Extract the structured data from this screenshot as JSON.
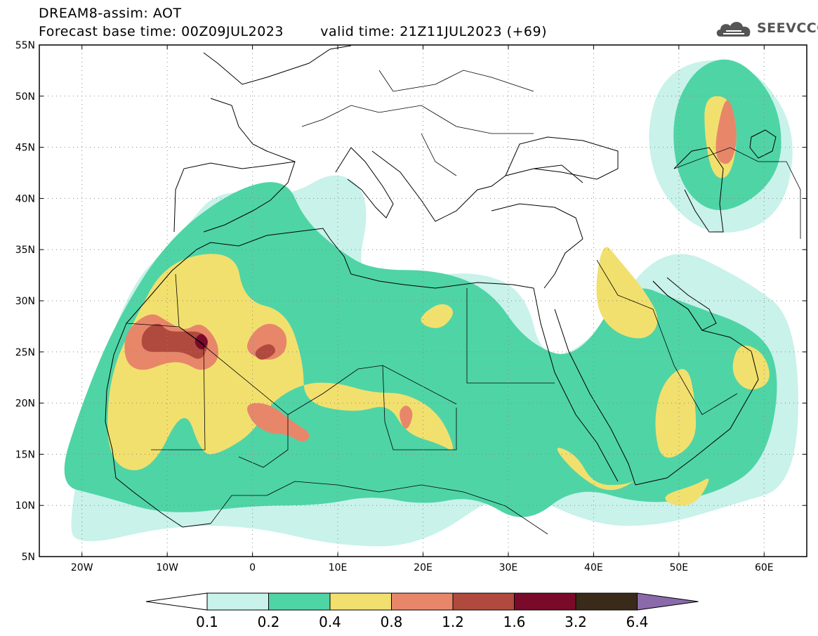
{
  "header": {
    "line1": "DREAM8-assim: AOT",
    "base_label": "Forecast base time: 00Z09JUL2023",
    "valid_label": "valid time: 21Z11JUL2023 (+69)"
  },
  "logo": {
    "text": "SEEVCCC",
    "icon": "cloud-icon"
  },
  "map": {
    "lon_range": [
      -25,
      65
    ],
    "lat_range": [
      5,
      55
    ],
    "lat_ticks": [
      {
        "value": 55,
        "label": "55N"
      },
      {
        "value": 50,
        "label": "50N"
      },
      {
        "value": 45,
        "label": "45N"
      },
      {
        "value": 40,
        "label": "40N"
      },
      {
        "value": 35,
        "label": "35N"
      },
      {
        "value": 30,
        "label": "30N"
      },
      {
        "value": 25,
        "label": "25N"
      },
      {
        "value": 20,
        "label": "20N"
      },
      {
        "value": 15,
        "label": "15N"
      },
      {
        "value": 10,
        "label": "10N"
      },
      {
        "value": 5,
        "label": "5N"
      }
    ],
    "lon_ticks": [
      {
        "value": -20,
        "label": "20W"
      },
      {
        "value": -10,
        "label": "10W"
      },
      {
        "value": 0,
        "label": "0"
      },
      {
        "value": 10,
        "label": "10E"
      },
      {
        "value": 20,
        "label": "20E"
      },
      {
        "value": 30,
        "label": "30E"
      },
      {
        "value": 40,
        "label": "40E"
      },
      {
        "value": 50,
        "label": "50E"
      },
      {
        "value": 60,
        "label": "60E"
      }
    ],
    "grid": "dotted"
  },
  "colorbar": {
    "labels": [
      "0.1",
      "0.2",
      "0.4",
      "0.8",
      "1.2",
      "1.6",
      "3.2",
      "6.4"
    ],
    "colors": [
      "#c8f2ea",
      "#4fd4a6",
      "#f2e06e",
      "#e8866a",
      "#b04a3e",
      "#7a0a2a",
      "#3a2a1a",
      "#8a6aaa"
    ],
    "under_color": "#ffffff"
  },
  "fields": [
    {
      "level": 0,
      "blobs": [
        [
          -22,
          8,
          -16,
          30,
          -8,
          37,
          -4,
          41,
          4,
          40,
          10,
          43,
          14,
          40,
          12,
          32,
          18,
          32,
          26,
          33,
          32,
          31,
          34,
          24,
          40,
          26,
          48,
          36,
          58,
          32,
          64,
          28,
          64,
          12,
          56,
          10,
          48,
          8,
          40,
          8,
          30,
          12,
          20,
          6,
          10,
          6,
          0,
          8,
          -10,
          8,
          -20,
          6
        ],
        [
          48,
          52,
          54,
          54,
          60,
          52,
          64,
          46,
          62,
          38,
          54,
          36,
          48,
          40,
          46,
          46
        ]
      ]
    },
    {
      "level": 1,
      "blobs": [
        [
          -23,
          12,
          -20,
          20,
          -16,
          28,
          -10,
          36,
          -2,
          41,
          4,
          42,
          6,
          38,
          10,
          35,
          14,
          33,
          22,
          33,
          28,
          31,
          32,
          26,
          38,
          24,
          44,
          32,
          50,
          30,
          60,
          27,
          62,
          22,
          60,
          14,
          54,
          11,
          46,
          10,
          38,
          12,
          32,
          8,
          26,
          11,
          20,
          10,
          14,
          11,
          8,
          10,
          0,
          10,
          -10,
          9,
          -18,
          11
        ],
        [
          49,
          48,
          52,
          53,
          57,
          54,
          62,
          49,
          62,
          42,
          55,
          38,
          50,
          41
        ]
      ]
    },
    {
      "level": 2,
      "blobs": [
        [
          -17,
          14,
          -17,
          22,
          -14,
          28,
          -10,
          34,
          -2,
          35,
          -1,
          30,
          4,
          29,
          6,
          24,
          6,
          20,
          12,
          19,
          16,
          20,
          18,
          17,
          22,
          16,
          24,
          15,
          22,
          19,
          18,
          21,
          14,
          21,
          10,
          22,
          6,
          22,
          2,
          20,
          0,
          17,
          -4,
          15,
          -6,
          15,
          -8,
          20,
          -12,
          13
        ],
        [
          19,
          28,
          22,
          30,
          24,
          29,
          22,
          27
        ],
        [
          41,
          36,
          43,
          34,
          46,
          31,
          48,
          28,
          46,
          26,
          42,
          27,
          40,
          30
        ],
        [
          48,
          22,
          51,
          24,
          52,
          20,
          52,
          16,
          48,
          14,
          47,
          18
        ],
        [
          35,
          16,
          38,
          15,
          40,
          12,
          44,
          12,
          46,
          13,
          42,
          11,
          38,
          13
        ],
        [
          53,
          50,
          56,
          50,
          57,
          46,
          56,
          42,
          54,
          42,
          53,
          46
        ],
        [
          57,
          26,
          60,
          25,
          61,
          22,
          58,
          21,
          56,
          23
        ],
        [
          48,
          11,
          52,
          12,
          54,
          13,
          52,
          10,
          49,
          10
        ]
      ]
    },
    {
      "level": 3,
      "blobs": [
        [
          -15,
          24,
          -15,
          27,
          -12,
          29,
          -10,
          28,
          -8,
          27,
          -6,
          28,
          -4,
          26,
          -4,
          24,
          -6,
          23,
          -8,
          24,
          -10,
          24,
          -13,
          23
        ],
        [
          -1,
          25,
          0,
          27,
          2,
          28,
          4,
          27,
          4,
          25,
          2,
          24
        ],
        [
          -1,
          20,
          2,
          20,
          5,
          18,
          7,
          17,
          6,
          16,
          4,
          17,
          2,
          17,
          0,
          18
        ],
        [
          17,
          19,
          18,
          20,
          19,
          19,
          18,
          17
        ],
        [
          54,
          44,
          55,
          49,
          56,
          50,
          57,
          46,
          56,
          43
        ]
      ]
    },
    {
      "level": 4,
      "blobs": [
        [
          -13,
          25,
          -13,
          27,
          -11,
          28,
          -10,
          27,
          -8,
          27,
          -6,
          27,
          -5,
          26,
          -6,
          24,
          -8,
          25,
          -10,
          25
        ],
        [
          0,
          25,
          2,
          26,
          3,
          25,
          1,
          24
        ]
      ]
    },
    {
      "level": 5,
      "blobs": [
        [
          -7,
          26,
          -6,
          27,
          -5,
          26,
          -6,
          25
        ]
      ]
    }
  ]
}
